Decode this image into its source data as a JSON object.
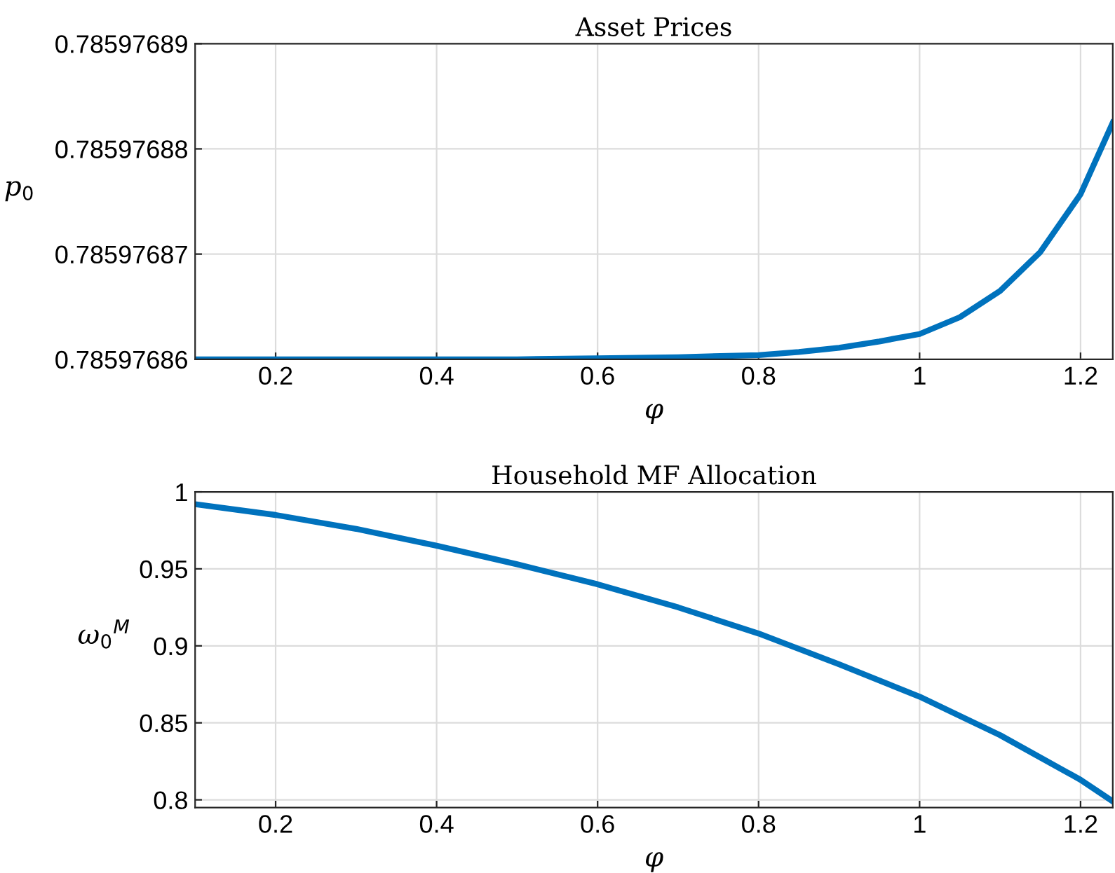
{
  "chart_data": [
    {
      "type": "line",
      "title": "Asset Prices",
      "xlabel": "φ",
      "ylabel": "p$_{0}$",
      "x": [
        0.1,
        0.2,
        0.3,
        0.4,
        0.5,
        0.6,
        0.7,
        0.8,
        0.85,
        0.9,
        0.95,
        1.0,
        1.05,
        1.1,
        1.15,
        1.2,
        1.24
      ],
      "series": [
        {
          "color": "#0072bd",
          "values": [
            0.78597686,
            0.78597686,
            0.78597686,
            0.78597686,
            0.78597686,
            0.7859768601,
            0.7859768602,
            0.7859768604,
            0.7859768607,
            0.7859768611,
            0.7859768617,
            0.7859768624,
            0.785976864,
            0.7859768665,
            0.7859768702,
            0.7859768757,
            0.7859768825
          ]
        }
      ],
      "xlim": [
        0.1,
        1.24
      ],
      "ylim": [
        0.78597686,
        0.78597689
      ],
      "xticks": [
        0.2,
        0.4,
        0.6,
        0.8,
        1,
        1.2
      ],
      "yticks": [
        0.78597686,
        0.78597687,
        0.78597688,
        0.78597689
      ],
      "grid": true,
      "legend": false
    },
    {
      "type": "line",
      "title": "Household MF Allocation",
      "xlabel": "φ",
      "ylabel": "ω$_{0}$$^{M}$",
      "x": [
        0.1,
        0.2,
        0.3,
        0.4,
        0.5,
        0.6,
        0.7,
        0.8,
        0.9,
        1.0,
        1.1,
        1.2,
        1.24
      ],
      "series": [
        {
          "color": "#0072bd",
          "values": [
            0.992,
            0.985,
            0.976,
            0.965,
            0.953,
            0.94,
            0.925,
            0.908,
            0.888,
            0.867,
            0.842,
            0.813,
            0.799
          ]
        }
      ],
      "xlim": [
        0.1,
        1.24
      ],
      "ylim": [
        0.795,
        1
      ],
      "xticks": [
        0.2,
        0.4,
        0.6,
        0.8,
        1,
        1.2
      ],
      "yticks": [
        0.8,
        0.85,
        0.9,
        0.95,
        1
      ],
      "grid": true,
      "legend": false
    }
  ]
}
